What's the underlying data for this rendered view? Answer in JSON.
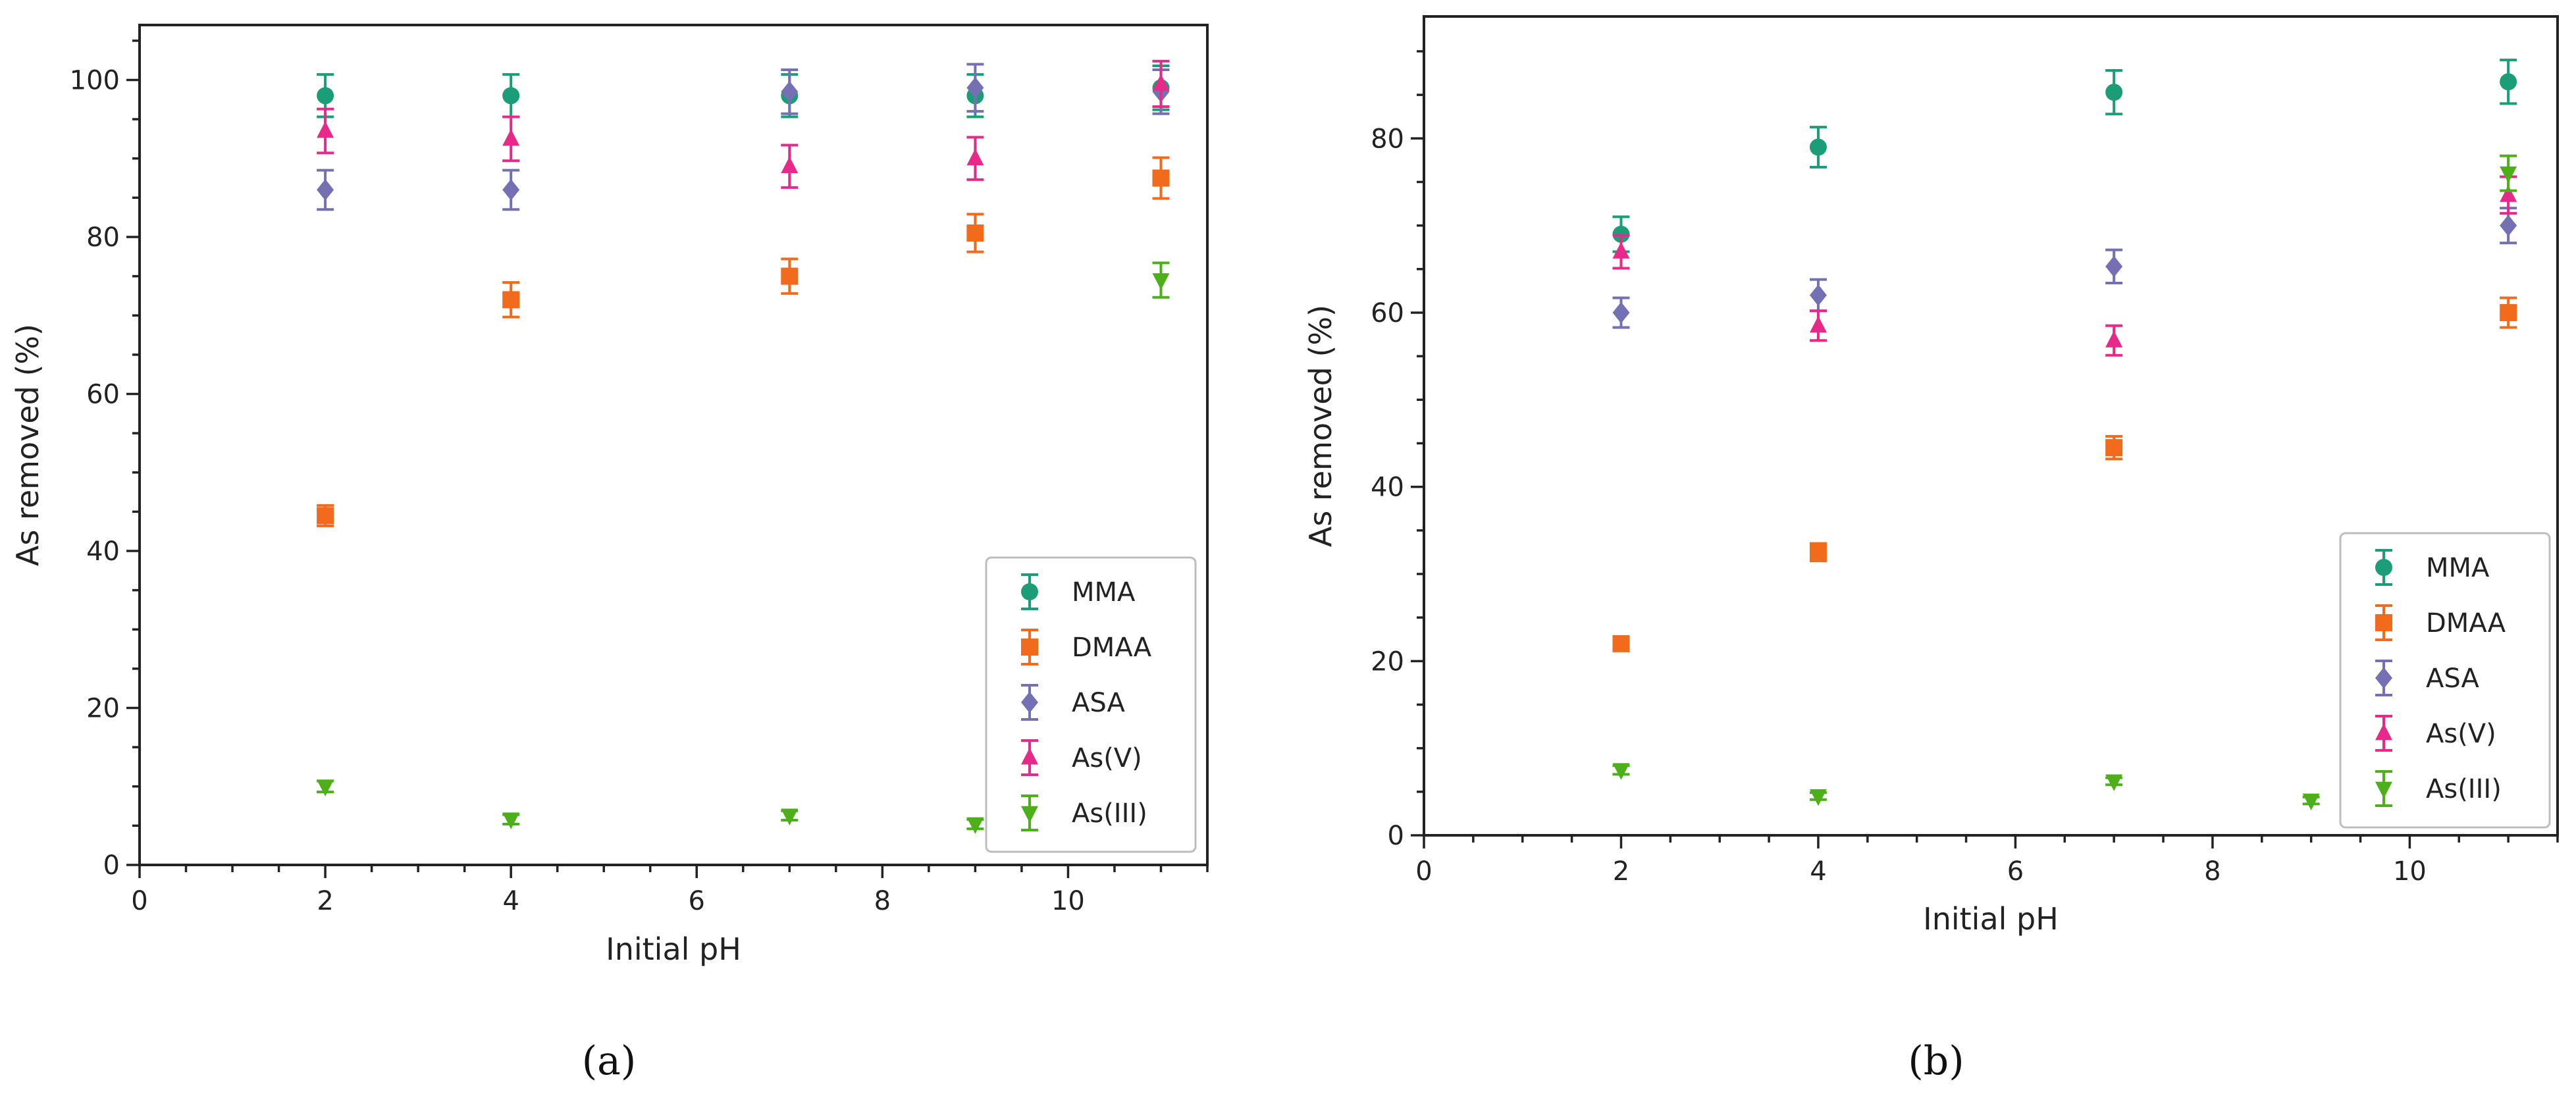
{
  "colors": {
    "MMA": "#1b9e77",
    "DMAA": "#f26b1d",
    "ASA": "#7570b3",
    "As(V)": "#e7298a",
    "As(III)": "#4daf1a"
  },
  "chart_data": [
    {
      "type": "scatter",
      "panel_label": "(a)",
      "xlabel": "Initial pH",
      "ylabel": "As removed (%)",
      "xlim": [
        0,
        11.5
      ],
      "ylim": [
        0,
        107
      ],
      "xticks": [
        0,
        2,
        4,
        6,
        8,
        10
      ],
      "yticks": [
        0,
        20,
        40,
        60,
        80,
        100
      ],
      "legend_position": "bottom-right",
      "x": [
        2,
        4,
        7,
        9,
        11
      ],
      "series": [
        {
          "name": "MMA",
          "marker": "circle",
          "values": [
            98,
            98,
            98,
            98,
            99
          ],
          "errors": [
            2.7,
            2.7,
            2.7,
            2.7,
            2.8
          ]
        },
        {
          "name": "DMAA",
          "marker": "square",
          "values": [
            44.5,
            72,
            75,
            80.5,
            87.5
          ],
          "errors": [
            1.3,
            2.2,
            2.2,
            2.4,
            2.6
          ]
        },
        {
          "name": "ASA",
          "marker": "diamond",
          "values": [
            86,
            86,
            98.5,
            99,
            98.5
          ],
          "errors": [
            2.5,
            2.5,
            2.8,
            3.0,
            2.8
          ]
        },
        {
          "name": "As(V)",
          "marker": "triangle-up",
          "values": [
            93.5,
            92.5,
            89,
            90,
            99.5
          ],
          "errors": [
            2.8,
            2.8,
            2.7,
            2.7,
            2.9
          ]
        },
        {
          "name": "As(III)",
          "marker": "triangle-down",
          "values": [
            10,
            5.8,
            6.3,
            5.2,
            74.5
          ],
          "errors": [
            0.7,
            0.6,
            0.6,
            0.6,
            2.2
          ]
        }
      ]
    },
    {
      "type": "scatter",
      "panel_label": "(b)",
      "xlabel": "Initial pH",
      "ylabel": "As removed (%)",
      "xlim": [
        0,
        11.5
      ],
      "ylim": [
        0,
        94
      ],
      "xticks": [
        0,
        2,
        4,
        6,
        8,
        10
      ],
      "yticks": [
        0,
        20,
        40,
        60,
        80
      ],
      "legend_position": "bottom-right",
      "x": [
        2,
        4,
        7,
        9,
        11
      ],
      "series": [
        {
          "name": "MMA",
          "marker": "circle",
          "values": [
            69,
            79,
            85.3,
            null,
            86.5
          ],
          "errors": [
            2.0,
            2.3,
            2.5,
            null,
            2.5
          ]
        },
        {
          "name": "DMAA",
          "marker": "square",
          "values": [
            22,
            32.5,
            44.5,
            null,
            60
          ],
          "errors": [
            0.7,
            1.0,
            1.3,
            null,
            1.7
          ]
        },
        {
          "name": "ASA",
          "marker": "diamond",
          "values": [
            60,
            62,
            65.3,
            null,
            70
          ],
          "errors": [
            1.7,
            1.8,
            1.9,
            null,
            2.0
          ]
        },
        {
          "name": "As(V)",
          "marker": "triangle-up",
          "values": [
            67,
            58.5,
            56.8,
            null,
            73.5
          ],
          "errors": [
            1.9,
            1.7,
            1.7,
            null,
            2.1
          ]
        },
        {
          "name": "As(III)",
          "marker": "triangle-down",
          "values": [
            7.5,
            4.5,
            6.2,
            4,
            76
          ],
          "errors": [
            0.5,
            0.4,
            0.4,
            0.4,
            2.0
          ]
        }
      ]
    }
  ]
}
